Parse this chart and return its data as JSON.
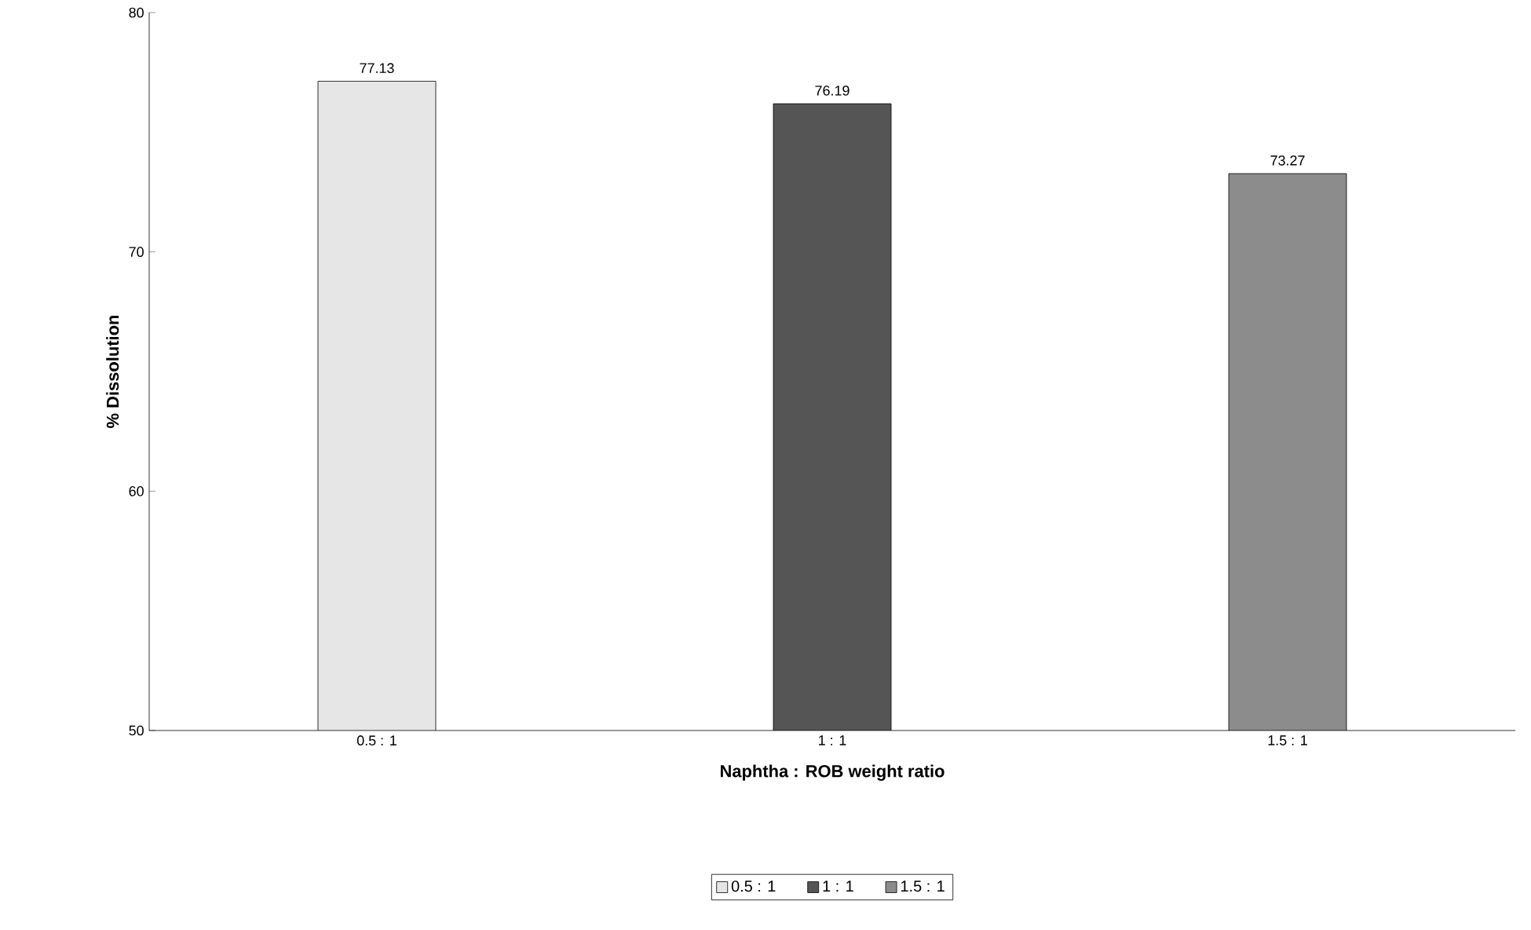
{
  "chart_data": {
    "type": "bar",
    "xlabel": "Naphtha : ROB weight ratio",
    "ylabel": "% Dissolution",
    "categories": [
      "0.5 : 1",
      "1 : 1",
      "1.5 : 1"
    ],
    "series": [
      {
        "name": "0.5 : 1",
        "color": "#e6e6e6",
        "values": [
          77.13,
          null,
          null
        ]
      },
      {
        "name": "1 : 1",
        "color": "#555555",
        "values": [
          null,
          76.19,
          null
        ]
      },
      {
        "name": "1.5 : 1",
        "color": "#8c8c8c",
        "values": [
          null,
          null,
          73.27
        ]
      }
    ],
    "ylim": [
      50,
      80
    ],
    "yticks": [
      50,
      60,
      70,
      80
    ],
    "data_labels": true,
    "legend": "bottom"
  }
}
